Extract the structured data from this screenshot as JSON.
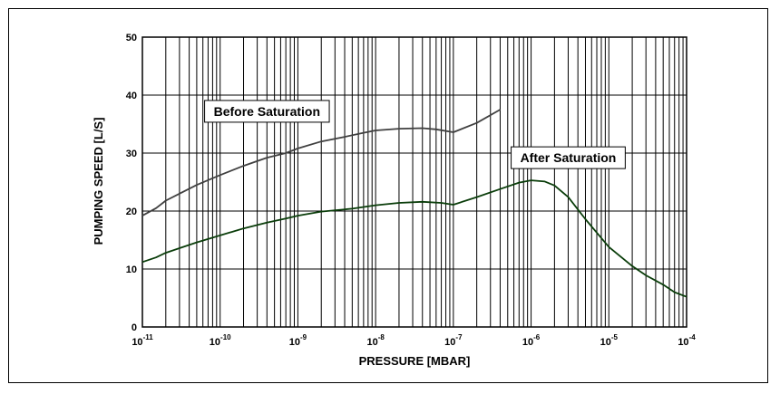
{
  "chart_data": {
    "type": "line",
    "title": "",
    "xlabel": "PRESSURE [MBAR]",
    "ylabel": "PUMPING SPEED [L/S]",
    "x_scale": "log",
    "xlim": [
      1e-11,
      0.0001
    ],
    "ylim": [
      0,
      50
    ],
    "grid": true,
    "x_ticks": [
      {
        "base": "10",
        "exp": "-11",
        "value": 1e-11
      },
      {
        "base": "10",
        "exp": "-10",
        "value": 1e-10
      },
      {
        "base": "10",
        "exp": "-9",
        "value": 1e-09
      },
      {
        "base": "10",
        "exp": "-8",
        "value": 1e-08
      },
      {
        "base": "10",
        "exp": "-7",
        "value": 1e-07
      },
      {
        "base": "10",
        "exp": "-6",
        "value": 1e-06
      },
      {
        "base": "10",
        "exp": "-5",
        "value": 1e-05
      },
      {
        "base": "10",
        "exp": "-4",
        "value": 0.0001
      }
    ],
    "y_ticks": [
      "0",
      "10",
      "20",
      "30",
      "40",
      "50"
    ],
    "series": [
      {
        "name": "Before Saturation",
        "color": "#404040",
        "points": [
          [
            1e-11,
            19.2
          ],
          [
            1.5e-11,
            20.5
          ],
          [
            2e-11,
            21.8
          ],
          [
            3e-11,
            23.0
          ],
          [
            5e-11,
            24.5
          ],
          [
            1e-10,
            26.2
          ],
          [
            2e-10,
            27.8
          ],
          [
            4e-10,
            29.2
          ],
          [
            7e-10,
            30.0
          ],
          [
            1e-09,
            30.8
          ],
          [
            2e-09,
            32.0
          ],
          [
            4e-09,
            32.8
          ],
          [
            7e-09,
            33.5
          ],
          [
            1e-08,
            33.9
          ],
          [
            2e-08,
            34.2
          ],
          [
            4e-08,
            34.3
          ],
          [
            6e-08,
            34.1
          ],
          [
            1e-07,
            33.6
          ],
          [
            2e-07,
            35.2
          ],
          [
            4e-07,
            37.5
          ]
        ]
      },
      {
        "name": "After Saturation",
        "color": "#0a3d0a",
        "points": [
          [
            1e-11,
            11.2
          ],
          [
            1.5e-11,
            12.0
          ],
          [
            2e-11,
            12.8
          ],
          [
            3e-11,
            13.6
          ],
          [
            5e-11,
            14.6
          ],
          [
            1e-10,
            15.8
          ],
          [
            2e-10,
            17.0
          ],
          [
            4e-10,
            18.0
          ],
          [
            7e-10,
            18.7
          ],
          [
            1e-09,
            19.2
          ],
          [
            2e-09,
            19.9
          ],
          [
            5e-09,
            20.4
          ],
          [
            1e-08,
            21.0
          ],
          [
            2e-08,
            21.4
          ],
          [
            4e-08,
            21.6
          ],
          [
            7e-08,
            21.4
          ],
          [
            1e-07,
            21.1
          ],
          [
            2e-07,
            22.4
          ],
          [
            4e-07,
            23.8
          ],
          [
            7e-07,
            24.9
          ],
          [
            1e-06,
            25.3
          ],
          [
            1.5e-06,
            25.1
          ],
          [
            2e-06,
            24.4
          ],
          [
            3e-06,
            22.4
          ],
          [
            5e-06,
            18.6
          ],
          [
            1e-05,
            13.8
          ],
          [
            2e-05,
            10.5
          ],
          [
            3e-05,
            8.9
          ],
          [
            5e-05,
            7.3
          ],
          [
            7e-05,
            6.0
          ],
          [
            0.0001,
            5.2
          ]
        ]
      }
    ],
    "annotations": [
      {
        "text": "Before Saturation",
        "x": 4e-10,
        "y": 37.2
      },
      {
        "text": "After Saturation",
        "x": 3e-06,
        "y": 29.2
      }
    ]
  }
}
